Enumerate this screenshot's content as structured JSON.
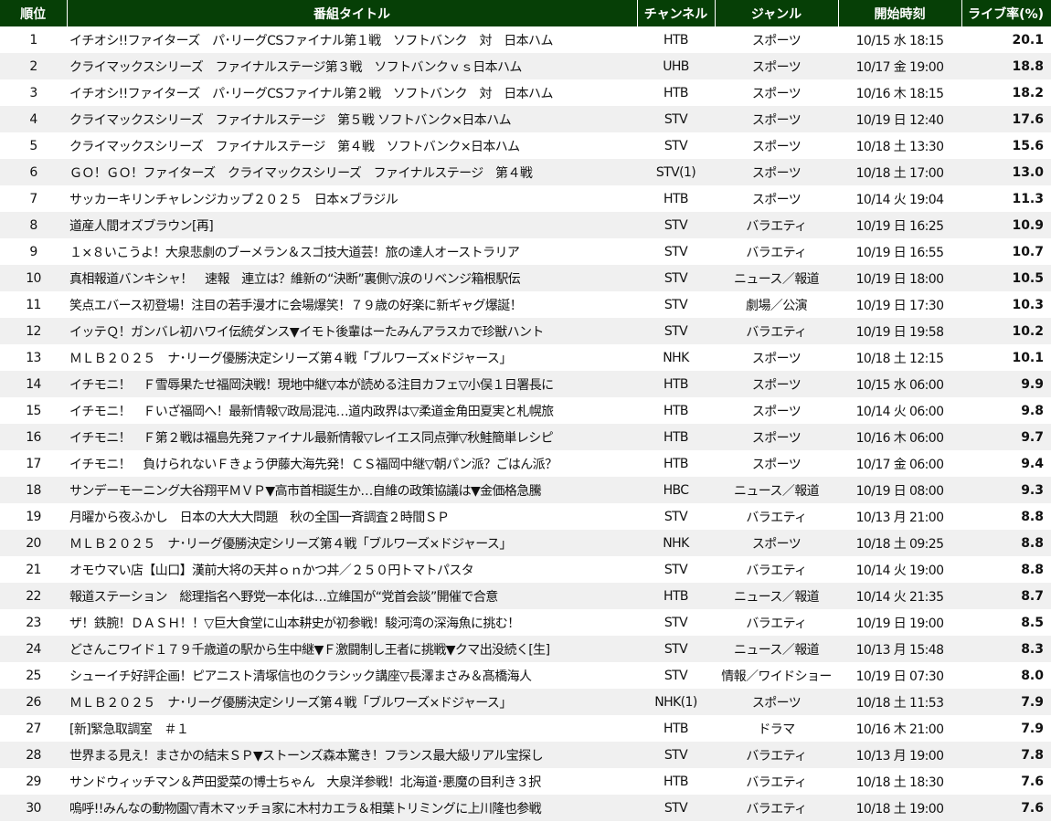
{
  "colors": {
    "header_bg": "#063f06",
    "header_text": "#ffffff",
    "row_alt": "#f0f0f0"
  },
  "headers": {
    "rank": "順位",
    "title": "番組タイトル",
    "channel": "チャンネル",
    "genre": "ジャンル",
    "start": "開始時刻",
    "rating": "ライブ率(%)"
  },
  "rows": [
    {
      "rank": "1",
      "title": "イチオシ!!ファイターズ　パ･リーグCSファイナル第１戦　ソフトバンク　対　日本ハム",
      "channel": "HTB",
      "genre": "スポーツ",
      "start": "10/15 水 18:15",
      "rating": "20.1"
    },
    {
      "rank": "2",
      "title": "クライマックスシリーズ　ファイナルステージ第３戦　ソフトバンクｖｓ日本ハム",
      "channel": "UHB",
      "genre": "スポーツ",
      "start": "10/17 金 19:00",
      "rating": "18.8"
    },
    {
      "rank": "3",
      "title": "イチオシ!!ファイターズ　パ･リーグCSファイナル第２戦　ソフトバンク　対　日本ハム",
      "channel": "HTB",
      "genre": "スポーツ",
      "start": "10/16 木 18:15",
      "rating": "18.2"
    },
    {
      "rank": "4",
      "title": "クライマックスシリーズ　ファイナルステージ　第５戦 ソフトバンク×日本ハム",
      "channel": "STV",
      "genre": "スポーツ",
      "start": "10/19 日 12:40",
      "rating": "17.6"
    },
    {
      "rank": "5",
      "title": "クライマックスシリーズ　ファイナルステージ　第４戦　ソフトバンク×日本ハム",
      "channel": "STV",
      "genre": "スポーツ",
      "start": "10/18 土 13:30",
      "rating": "15.6"
    },
    {
      "rank": "6",
      "title": "ＧＯ！ＧＯ！ファイターズ　クライマックスシリーズ　ファイナルステージ　第４戦",
      "channel": "STV(1)",
      "genre": "スポーツ",
      "start": "10/18 土 17:00",
      "rating": "13.0"
    },
    {
      "rank": "7",
      "title": "サッカーキリンチャレンジカップ２０２５　日本×ブラジル",
      "channel": "HTB",
      "genre": "スポーツ",
      "start": "10/14 火 19:04",
      "rating": "11.3"
    },
    {
      "rank": "8",
      "title": "道産人間オズブラウン[再]",
      "channel": "STV",
      "genre": "バラエティ",
      "start": "10/19 日 16:25",
      "rating": "10.9"
    },
    {
      "rank": "9",
      "title": "１×８いこうよ！大泉悲劇のブーメラン＆スゴ技大道芸！旅の達人オーストラリア",
      "channel": "STV",
      "genre": "バラエティ",
      "start": "10/19 日 16:55",
      "rating": "10.7"
    },
    {
      "rank": "10",
      "title": "真相報道バンキシャ！　速報　連立は？維新の“決断”裏側▽涙のリベンジ箱根駅伝",
      "channel": "STV",
      "genre": "ニュース／報道",
      "start": "10/19 日 18:00",
      "rating": "10.5"
    },
    {
      "rank": "11",
      "title": "笑点エバース初登場！注目の若手漫才に会場爆笑！７９歳の好楽に新ギャグ爆誕！",
      "channel": "STV",
      "genre": "劇場／公演",
      "start": "10/19 日 17:30",
      "rating": "10.3"
    },
    {
      "rank": "12",
      "title": "イッテＱ！ガンバレ初ハワイ伝統ダンス▼イモト後輩はーたみんアラスカで珍獣ハント",
      "channel": "STV",
      "genre": "バラエティ",
      "start": "10/19 日 19:58",
      "rating": "10.2"
    },
    {
      "rank": "13",
      "title": "ＭＬＢ２０２５　ナ･リーグ優勝決定シリーズ第４戦「ブルワーズ×ドジャース」",
      "channel": "NHK",
      "genre": "スポーツ",
      "start": "10/18 土 12:15",
      "rating": "10.1"
    },
    {
      "rank": "14",
      "title": "イチモニ！　Ｆ雪辱果たせ福岡決戦！現地中継▽本が読める注目カフェ▽小俣１日署長に",
      "channel": "HTB",
      "genre": "スポーツ",
      "start": "10/15 水 06:00",
      "rating": "9.9"
    },
    {
      "rank": "15",
      "title": "イチモニ！　Ｆいざ福岡へ！最新情報▽政局混沌…道内政界は▽柔道金角田夏実と札幌旅",
      "channel": "HTB",
      "genre": "スポーツ",
      "start": "10/14 火 06:00",
      "rating": "9.8"
    },
    {
      "rank": "16",
      "title": "イチモニ！　Ｆ第２戦は福島先発ファイナル最新情報▽レイエス同点弾▽秋鮭簡単レシピ",
      "channel": "HTB",
      "genre": "スポーツ",
      "start": "10/16 木 06:00",
      "rating": "9.7"
    },
    {
      "rank": "17",
      "title": "イチモニ！　負けられないＦきょう伊藤大海先発！ＣＳ福岡中継▽朝パン派？ごはん派？",
      "channel": "HTB",
      "genre": "スポーツ",
      "start": "10/17 金 06:00",
      "rating": "9.4"
    },
    {
      "rank": "18",
      "title": "サンデーモーニング大谷翔平ＭＶＰ▼高市首相誕生か…自維の政策協議は▼金価格急騰",
      "channel": "HBC",
      "genre": "ニュース／報道",
      "start": "10/19 日 08:00",
      "rating": "9.3"
    },
    {
      "rank": "19",
      "title": "月曜から夜ふかし　日本の大大大問題　秋の全国一斉調査２時間ＳＰ",
      "channel": "STV",
      "genre": "バラエティ",
      "start": "10/13 月 21:00",
      "rating": "8.8"
    },
    {
      "rank": "20",
      "title": "ＭＬＢ２０２５　ナ･リーグ優勝決定シリーズ第４戦「ブルワーズ×ドジャース」",
      "channel": "NHK",
      "genre": "スポーツ",
      "start": "10/18 土 09:25",
      "rating": "8.8"
    },
    {
      "rank": "21",
      "title": "オモウマい店【山口】漢前大将の天丼ｏｎかつ丼／２５０円トマトパスタ",
      "channel": "STV",
      "genre": "バラエティ",
      "start": "10/14 火 19:00",
      "rating": "8.8"
    },
    {
      "rank": "22",
      "title": "報道ステーション　総理指名へ野党一本化は…立維国が“党首会談”開催で合意",
      "channel": "HTB",
      "genre": "ニュース／報道",
      "start": "10/14 火 21:35",
      "rating": "8.7"
    },
    {
      "rank": "23",
      "title": "ザ！鉄腕！ＤＡＳＨ！！▽巨大食堂に山本耕史が初参戦！駿河湾の深海魚に挑む！",
      "channel": "STV",
      "genre": "バラエティ",
      "start": "10/19 日 19:00",
      "rating": "8.5"
    },
    {
      "rank": "24",
      "title": "どさんこワイド１７９千歳道の駅から生中継▼Ｆ激闘制し王者に挑戦▼クマ出没続く[生]",
      "channel": "STV",
      "genre": "ニュース／報道",
      "start": "10/13 月 15:48",
      "rating": "8.3"
    },
    {
      "rank": "25",
      "title": "シューイチ好評企画！ピアニスト清塚信也のクラシック講座▽長澤まさみ＆髙橋海人",
      "channel": "STV",
      "genre": "情報／ワイドショー",
      "start": "10/19 日 07:30",
      "rating": "8.0"
    },
    {
      "rank": "26",
      "title": "ＭＬＢ２０２５　ナ･リーグ優勝決定シリーズ第４戦「ブルワーズ×ドジャース」",
      "channel": "NHK(1)",
      "genre": "スポーツ",
      "start": "10/18 土 11:53",
      "rating": "7.9"
    },
    {
      "rank": "27",
      "title": "[新]緊急取調室　＃１",
      "channel": "HTB",
      "genre": "ドラマ",
      "start": "10/16 木 21:00",
      "rating": "7.9"
    },
    {
      "rank": "28",
      "title": "世界まる見え！まさかの結末ＳＰ▼ストーンズ森本驚き！フランス最大級リアル宝探し",
      "channel": "STV",
      "genre": "バラエティ",
      "start": "10/13 月 19:00",
      "rating": "7.8"
    },
    {
      "rank": "29",
      "title": "サンドウィッチマン＆芦田愛菜の博士ちゃん　大泉洋参戦！北海道･悪魔の目利き３択",
      "channel": "HTB",
      "genre": "バラエティ",
      "start": "10/18 土 18:30",
      "rating": "7.6"
    },
    {
      "rank": "30",
      "title": "嗚呼!!みんなの動物園▽青木マッチョ家に木村カエラ＆相葉トリミングに上川隆也参戦",
      "channel": "STV",
      "genre": "バラエティ",
      "start": "10/18 土 19:00",
      "rating": "7.6"
    }
  ]
}
